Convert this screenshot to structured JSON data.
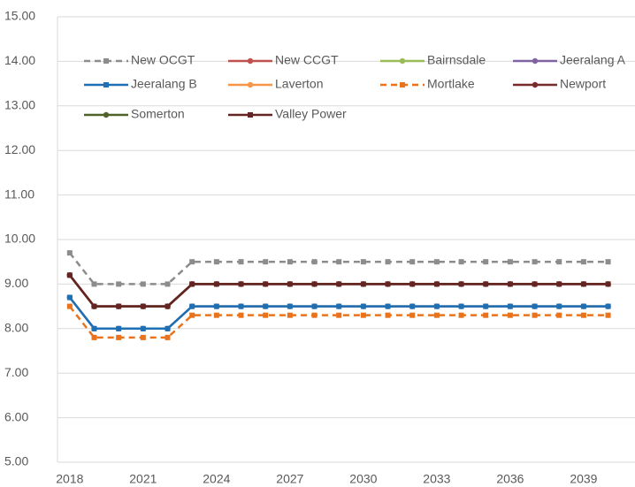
{
  "chart_data": {
    "type": "line",
    "categories": [
      2018,
      null,
      null,
      2021,
      null,
      null,
      2024,
      null,
      null,
      2027,
      null,
      null,
      2030,
      null,
      null,
      2033,
      null,
      null,
      2036,
      null,
      null,
      2039,
      null
    ],
    "ylim": [
      5,
      15
    ],
    "yticks": [
      {
        "value": 5,
        "label": "5.00"
      },
      {
        "value": 6,
        "label": "6.00"
      },
      {
        "value": 7,
        "label": "7.00"
      },
      {
        "value": 8,
        "label": "8.00"
      },
      {
        "value": 9,
        "label": "9.00"
      },
      {
        "value": 10,
        "label": "10.00"
      },
      {
        "value": 11,
        "label": "11.00"
      },
      {
        "value": 12,
        "label": "12.00"
      },
      {
        "value": 13,
        "label": "13.00"
      },
      {
        "value": 14,
        "label": "14.00"
      },
      {
        "value": 15,
        "label": "15.00"
      }
    ],
    "grid": true,
    "legend": "top-left",
    "series": [
      {
        "name": "New OCGT",
        "color": "#8c8c8c",
        "dash": true,
        "marker": "square",
        "values": [
          9.7,
          9.0,
          9.0,
          9.0,
          9.0,
          9.5,
          9.5,
          9.5,
          9.5,
          9.5,
          9.5,
          9.5,
          9.5,
          9.5,
          9.5,
          9.5,
          9.5,
          9.5,
          9.5,
          9.5,
          9.5,
          9.5,
          9.5
        ]
      },
      {
        "name": "New CCGT",
        "color": "#c0504d",
        "dash": false,
        "marker": "circle",
        "values": [
          9.2,
          8.5,
          8.5,
          8.5,
          8.5,
          9.0,
          9.0,
          9.0,
          9.0,
          9.0,
          9.0,
          9.0,
          9.0,
          9.0,
          9.0,
          9.0,
          9.0,
          9.0,
          9.0,
          9.0,
          9.0,
          9.0,
          9.0
        ]
      },
      {
        "name": "Bairnsdale",
        "color": "#9bbb59",
        "dash": false,
        "marker": "circle",
        "values": [
          8.7,
          8.0,
          8.0,
          8.0,
          8.0,
          8.5,
          8.5,
          8.5,
          8.5,
          8.5,
          8.5,
          8.5,
          8.5,
          8.5,
          8.5,
          8.5,
          8.5,
          8.5,
          8.5,
          8.5,
          8.5,
          8.5,
          8.5
        ]
      },
      {
        "name": "Jeeralang A",
        "color": "#8064a2",
        "dash": false,
        "marker": "circle",
        "values": [
          8.7,
          8.0,
          8.0,
          8.0,
          8.0,
          8.5,
          8.5,
          8.5,
          8.5,
          8.5,
          8.5,
          8.5,
          8.5,
          8.5,
          8.5,
          8.5,
          8.5,
          8.5,
          8.5,
          8.5,
          8.5,
          8.5,
          8.5
        ]
      },
      {
        "name": "Jeeralang B",
        "color": "#1f6fb4",
        "dash": false,
        "marker": "square",
        "values": [
          8.7,
          8.0,
          8.0,
          8.0,
          8.0,
          8.5,
          8.5,
          8.5,
          8.5,
          8.5,
          8.5,
          8.5,
          8.5,
          8.5,
          8.5,
          8.5,
          8.5,
          8.5,
          8.5,
          8.5,
          8.5,
          8.5,
          8.5
        ]
      },
      {
        "name": "Laverton",
        "color": "#f79646",
        "dash": false,
        "marker": "circle",
        "values": [
          9.2,
          8.5,
          8.5,
          8.5,
          8.5,
          9.0,
          9.0,
          9.0,
          9.0,
          9.0,
          9.0,
          9.0,
          9.0,
          9.0,
          9.0,
          9.0,
          9.0,
          9.0,
          9.0,
          9.0,
          9.0,
          9.0,
          9.0
        ]
      },
      {
        "name": "Mortlake",
        "color": "#e8731c",
        "dash": true,
        "marker": "square",
        "values": [
          8.5,
          7.8,
          7.8,
          7.8,
          7.8,
          8.3,
          8.3,
          8.3,
          8.3,
          8.3,
          8.3,
          8.3,
          8.3,
          8.3,
          8.3,
          8.3,
          8.3,
          8.3,
          8.3,
          8.3,
          8.3,
          8.3,
          8.3
        ]
      },
      {
        "name": "Newport",
        "color": "#772c2a",
        "dash": false,
        "marker": "circle",
        "values": [
          9.2,
          8.5,
          8.5,
          8.5,
          8.5,
          9.0,
          9.0,
          9.0,
          9.0,
          9.0,
          9.0,
          9.0,
          9.0,
          9.0,
          9.0,
          9.0,
          9.0,
          9.0,
          9.0,
          9.0,
          9.0,
          9.0,
          9.0
        ]
      },
      {
        "name": "Somerton",
        "color": "#4f6228",
        "dash": false,
        "marker": "circle",
        "values": [
          9.2,
          8.5,
          8.5,
          8.5,
          8.5,
          9.0,
          9.0,
          9.0,
          9.0,
          9.0,
          9.0,
          9.0,
          9.0,
          9.0,
          9.0,
          9.0,
          9.0,
          9.0,
          9.0,
          9.0,
          9.0,
          9.0,
          9.0
        ]
      },
      {
        "name": "Valley Power",
        "color": "#652424",
        "dash": false,
        "marker": "square",
        "values": [
          9.2,
          8.5,
          8.5,
          8.5,
          8.5,
          9.0,
          9.0,
          9.0,
          9.0,
          9.0,
          9.0,
          9.0,
          9.0,
          9.0,
          9.0,
          9.0,
          9.0,
          9.0,
          9.0,
          9.0,
          9.0,
          9.0,
          9.0
        ]
      }
    ]
  }
}
